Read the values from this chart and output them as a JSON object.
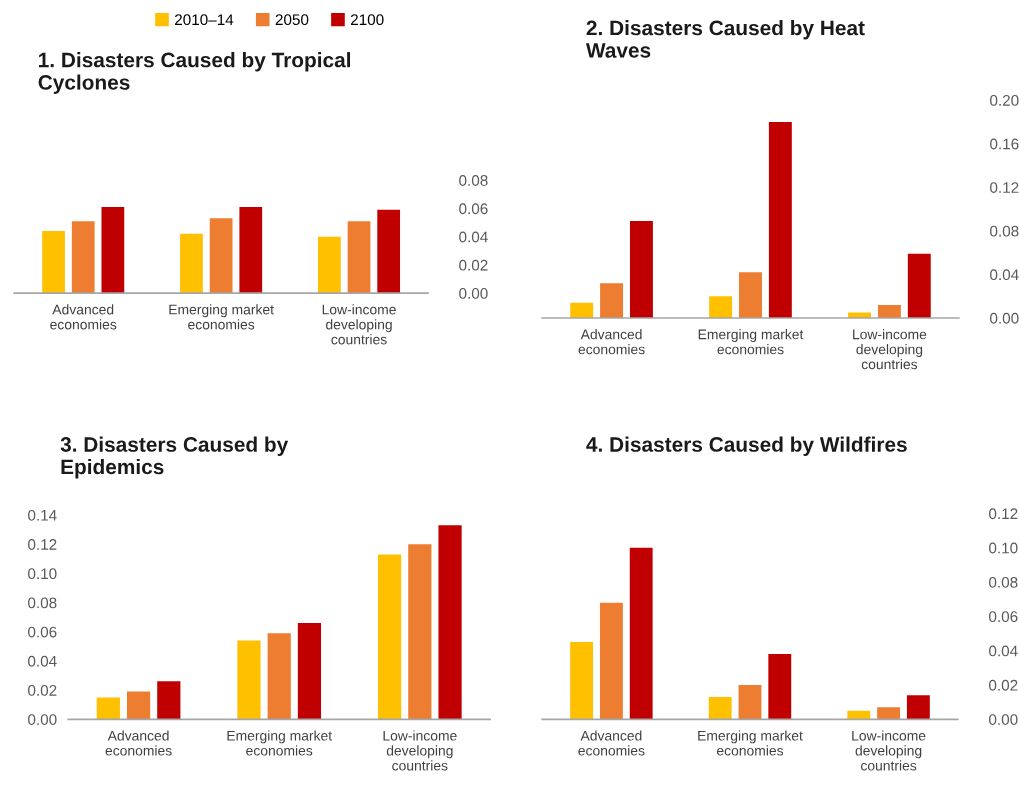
{
  "chart_data": [
    {
      "type": "bar",
      "title": "1. Disasters Caused by Tropical Cyclones",
      "categories": [
        "Advanced economies",
        "Emerging market economies",
        "Low-income developing countries"
      ],
      "legend": "top",
      "series": [
        {
          "name": "2010–14",
          "color": "#ffc000",
          "values": [
            0.044,
            0.042,
            0.04
          ]
        },
        {
          "name": "2050",
          "color": "#ed7d31",
          "values": [
            0.051,
            0.053,
            0.051
          ]
        },
        {
          "name": "2100",
          "color": "#c00000",
          "values": [
            0.061,
            0.061,
            0.059
          ]
        }
      ],
      "ylim": [
        0,
        0.08
      ],
      "yticks": [
        {
          "value": 0,
          "label": "0.00"
        },
        {
          "value": 0.02,
          "label": "0.02"
        },
        {
          "value": 0.04,
          "label": "0.04"
        },
        {
          "value": 0.06,
          "label": "0.06"
        },
        {
          "value": 0.08,
          "label": "0.08"
        }
      ]
    },
    {
      "type": "bar",
      "title": "2. Disasters Caused by Heat Waves",
      "categories": [
        "Advanced economies",
        "Emerging market economies",
        "Low-income developing countries"
      ],
      "series": [
        {
          "color": "#ffc000",
          "values": [
            0.014,
            0.02,
            0.005
          ]
        },
        {
          "color": "#ed7d31",
          "values": [
            0.032,
            0.042,
            0.012
          ]
        },
        {
          "color": "#c00000",
          "values": [
            0.089,
            0.18,
            0.059
          ]
        }
      ],
      "ylim": [
        0,
        0.2
      ],
      "yticks": [
        {
          "value": 0,
          "label": "0.00"
        },
        {
          "value": 0.04,
          "label": "0.04"
        },
        {
          "value": 0.08,
          "label": "0.08"
        },
        {
          "value": 0.12,
          "label": "0.12"
        },
        {
          "value": 0.16,
          "label": "0.16"
        },
        {
          "value": 0.2,
          "label": "0.20"
        }
      ]
    },
    {
      "type": "bar",
      "title": "3. Disasters Caused by Epidemics",
      "categories": [
        "Advanced economies",
        "Emerging market economies",
        "Low-income developing countries"
      ],
      "series": [
        {
          "color": "#ffc000",
          "values": [
            0.015,
            0.054,
            0.113
          ]
        },
        {
          "color": "#ed7d31",
          "values": [
            0.019,
            0.059,
            0.12
          ]
        },
        {
          "color": "#c00000",
          "values": [
            0.026,
            0.066,
            0.133
          ]
        }
      ],
      "ylim": [
        0,
        0.14
      ],
      "yticks": [
        {
          "value": 0,
          "label": "0.00"
        },
        {
          "value": 0.02,
          "label": "0.02"
        },
        {
          "value": 0.04,
          "label": "0.04"
        },
        {
          "value": 0.06,
          "label": "0.06"
        },
        {
          "value": 0.08,
          "label": "0.08"
        },
        {
          "value": 0.1,
          "label": "0.10"
        },
        {
          "value": 0.12,
          "label": "0.12"
        },
        {
          "value": 0.14,
          "label": "0.14"
        }
      ]
    },
    {
      "type": "bar",
      "title": "4. Disasters Caused by Wildfires",
      "categories": [
        "Advanced economies",
        "Emerging market economies",
        "Low-income developing countries"
      ],
      "series": [
        {
          "color": "#ffc000",
          "values": [
            0.045,
            0.013,
            0.005
          ]
        },
        {
          "color": "#ed7d31",
          "values": [
            0.068,
            0.02,
            0.007
          ]
        },
        {
          "color": "#c00000",
          "values": [
            0.1,
            0.038,
            0.014
          ]
        }
      ],
      "ylim": [
        0,
        0.12
      ],
      "yticks": [
        {
          "value": 0,
          "label": "0.00"
        },
        {
          "value": 0.02,
          "label": "0.02"
        },
        {
          "value": 0.04,
          "label": "0.04"
        },
        {
          "value": 0.06,
          "label": "0.06"
        },
        {
          "value": 0.08,
          "label": "0.08"
        },
        {
          "value": 0.1,
          "label": "0.10"
        },
        {
          "value": 0.12,
          "label": "0.12"
        }
      ]
    }
  ]
}
